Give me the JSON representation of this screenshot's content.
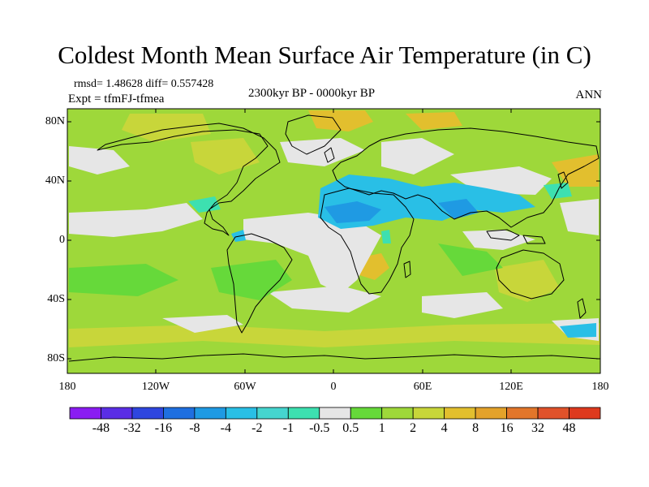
{
  "title": "Coldest Month Mean Surface Air Temperature (in C)",
  "stats": "rmsd= 1.48628 diff= 0.557428",
  "experiment": "Expt = tfmFJ-tfmea",
  "period": "2300kyr BP - 0000kyr BP",
  "season": "ANN",
  "lat_labels": [
    "80N",
    "40N",
    "0",
    "40S",
    "80S"
  ],
  "lon_labels": [
    "180",
    "120W",
    "60W",
    "0",
    "60E",
    "120E",
    "180"
  ],
  "colorbar": {
    "labels": [
      "-48",
      "-32",
      "-16",
      "-8",
      "-4",
      "-2",
      "-1",
      "-0.5",
      "0.5",
      "1",
      "2",
      "4",
      "8",
      "16",
      "32",
      "48"
    ],
    "colors": [
      "#8a1cf2",
      "#5a2ee6",
      "#2f46df",
      "#1f6fe0",
      "#1f9ae3",
      "#29bfe6",
      "#45d5cf",
      "#3de0b0",
      "#e6e6e6",
      "#66d93a",
      "#9ed83a",
      "#c8d63a",
      "#e2bf2e",
      "#e3a22a",
      "#e2762a",
      "#e0522a",
      "#de3a1e"
    ]
  },
  "palette": {
    "ocean_base": "#9ed83a",
    "neutral": "#e6e6e6",
    "light_green": "#66d93a",
    "cool_cyan": "#29bfe6",
    "teal": "#3de0b0",
    "blue": "#1f9ae3",
    "yellow": "#c8d63a",
    "orange": "#e2bf2e",
    "dark_orange": "#e3a22a"
  }
}
